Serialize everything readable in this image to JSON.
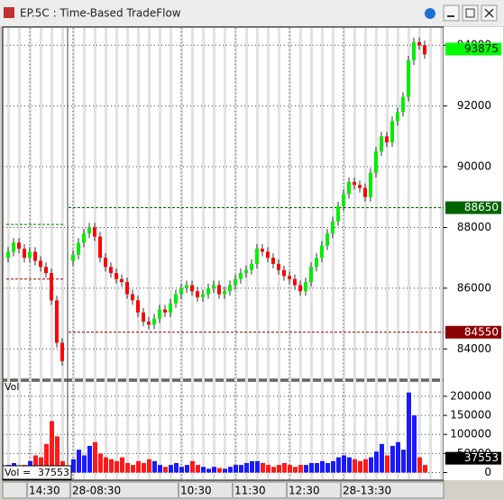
{
  "window": {
    "title": "EP.5C : Time-Based TradeFlow"
  },
  "chart_data": [
    {
      "type": "candlestick",
      "categories": [
        null,
        null,
        null,
        null,
        "14:30",
        null,
        null,
        null,
        null,
        null,
        null,
        null,
        "28-08:30",
        null,
        null,
        null,
        null,
        null,
        null,
        null,
        null,
        null,
        null,
        null,
        null,
        null,
        null,
        null,
        null,
        null,
        null,
        null,
        "10:30",
        null,
        null,
        null,
        null,
        null,
        null,
        null,
        null,
        null,
        "11:30",
        null,
        null,
        null,
        null,
        null,
        null,
        null,
        null,
        null,
        "12:30",
        null,
        null,
        null,
        null,
        null,
        null,
        null,
        null,
        null,
        "28-13:30",
        null,
        null,
        null,
        null,
        null,
        null,
        null,
        null,
        null,
        null,
        null,
        null,
        null,
        null,
        null
      ],
      "open": [
        87000,
        87200,
        87500,
        87300,
        87000,
        87200,
        86900,
        86700,
        86500,
        85600,
        84200,
        null,
        86900,
        87100,
        87500,
        87800,
        88000,
        87700,
        87000,
        86700,
        86500,
        86300,
        86200,
        85800,
        85600,
        85200,
        84900,
        84800,
        85000,
        85300,
        85200,
        85500,
        85800,
        86000,
        86100,
        85900,
        85700,
        85800,
        86000,
        86100,
        85800,
        85900,
        86100,
        86300,
        86500,
        86600,
        86800,
        87300,
        87200,
        87000,
        86800,
        86600,
        86400,
        86300,
        86100,
        85900,
        86200,
        86700,
        87000,
        87400,
        87800,
        88200,
        88700,
        89100,
        89500,
        89400,
        89300,
        89000,
        89800,
        90500,
        91000,
        90800,
        91500,
        91800,
        92300,
        93500,
        94100,
        94000
      ],
      "high": [
        87350,
        87650,
        87650,
        87450,
        87350,
        87350,
        87050,
        86850,
        86650,
        85750,
        84350,
        null,
        87250,
        87650,
        87950,
        88150,
        88150,
        87850,
        87150,
        86850,
        86650,
        86450,
        86350,
        85950,
        85750,
        85350,
        85050,
        85150,
        85450,
        85450,
        85650,
        85950,
        86150,
        86250,
        86250,
        86050,
        85950,
        86150,
        86250,
        86250,
        86050,
        86250,
        86450,
        86650,
        86750,
        86950,
        87450,
        87450,
        87350,
        87150,
        86950,
        86750,
        86550,
        86450,
        86250,
        86350,
        86850,
        87150,
        87550,
        87950,
        88350,
        88850,
        89250,
        89650,
        89650,
        89550,
        89450,
        89950,
        90650,
        91150,
        91150,
        91650,
        91950,
        92450,
        93650,
        94250,
        94250,
        94150
      ],
      "low": [
        86850,
        87050,
        87150,
        86850,
        86850,
        86750,
        86550,
        86350,
        85450,
        84050,
        83450,
        null,
        86750,
        86950,
        87350,
        87650,
        87550,
        86850,
        86550,
        86350,
        86150,
        86050,
        85650,
        85450,
        85050,
        84750,
        84650,
        84650,
        84850,
        85050,
        85050,
        85350,
        85650,
        85850,
        85750,
        85550,
        85550,
        85650,
        85850,
        85650,
        85650,
        85750,
        85950,
        86150,
        86350,
        86450,
        86650,
        87050,
        86850,
        86650,
        86450,
        86250,
        86150,
        85950,
        85750,
        85750,
        86050,
        86550,
        86850,
        87250,
        87650,
        88050,
        88550,
        88950,
        89250,
        89150,
        88850,
        88850,
        89650,
        90350,
        90650,
        90650,
        91350,
        91650,
        92150,
        93350,
        93850,
        93550
      ],
      "close": [
        87200,
        87500,
        87300,
        87000,
        87200,
        86900,
        86700,
        86500,
        85600,
        84200,
        83600,
        null,
        87100,
        87500,
        87800,
        88000,
        87700,
        87000,
        86700,
        86500,
        86300,
        86200,
        85800,
        85600,
        85200,
        84900,
        84800,
        85000,
        85300,
        85200,
        85500,
        85800,
        86000,
        86100,
        85900,
        85700,
        85800,
        86000,
        86100,
        85800,
        85900,
        86100,
        86300,
        86500,
        86600,
        86800,
        87300,
        87200,
        87000,
        86800,
        86600,
        86400,
        86300,
        86100,
        85900,
        86200,
        86700,
        87000,
        87400,
        87800,
        88200,
        88700,
        89100,
        89500,
        89400,
        89300,
        89000,
        89800,
        90500,
        91000,
        90800,
        91500,
        91800,
        92300,
        93500,
        94100,
        94000,
        93700
      ],
      "up_color": "#00ee00",
      "down_color": "#ff0000",
      "ylim": [
        83000,
        94600
      ],
      "yticks": [
        84000,
        86000,
        88000,
        90000,
        92000,
        94000
      ],
      "grid": true,
      "previous_session_levels": [
        {
          "value": 88100,
          "color": "#008000"
        },
        {
          "value": 86300,
          "color": "#a00000"
        }
      ],
      "levels": [
        {
          "value": 88650,
          "color": "#006400"
        },
        {
          "value": 84550,
          "color": "#8b0000"
        }
      ],
      "last_price": 93875,
      "last_price_color": "#00ff00"
    },
    {
      "type": "bar",
      "title": "Vol",
      "values": [
        20000,
        25000,
        15000,
        20000,
        30000,
        45000,
        40000,
        75000,
        135000,
        95000,
        30000,
        null,
        35000,
        60000,
        45000,
        70000,
        80000,
        50000,
        40000,
        35000,
        30000,
        40000,
        25000,
        20000,
        30000,
        25000,
        35000,
        30000,
        20000,
        15000,
        20000,
        25000,
        15000,
        20000,
        30000,
        20000,
        15000,
        10000,
        15000,
        12000,
        10000,
        15000,
        20000,
        20000,
        25000,
        30000,
        30000,
        25000,
        20000,
        15000,
        20000,
        25000,
        20000,
        15000,
        20000,
        20000,
        25000,
        25000,
        30000,
        25000,
        30000,
        40000,
        45000,
        40000,
        35000,
        30000,
        35000,
        40000,
        55000,
        75000,
        45000,
        70000,
        80000,
        60000,
        210000,
        150000,
        40000,
        20000
      ],
      "up_color": "#1a1aff",
      "down_color": "#ff1a1a",
      "ylim": [
        -20000,
        240000
      ],
      "yticks": [
        0,
        50000,
        100000,
        150000,
        200000
      ],
      "grid": true,
      "current_label": "Vol =",
      "current_value": 37553
    }
  ]
}
